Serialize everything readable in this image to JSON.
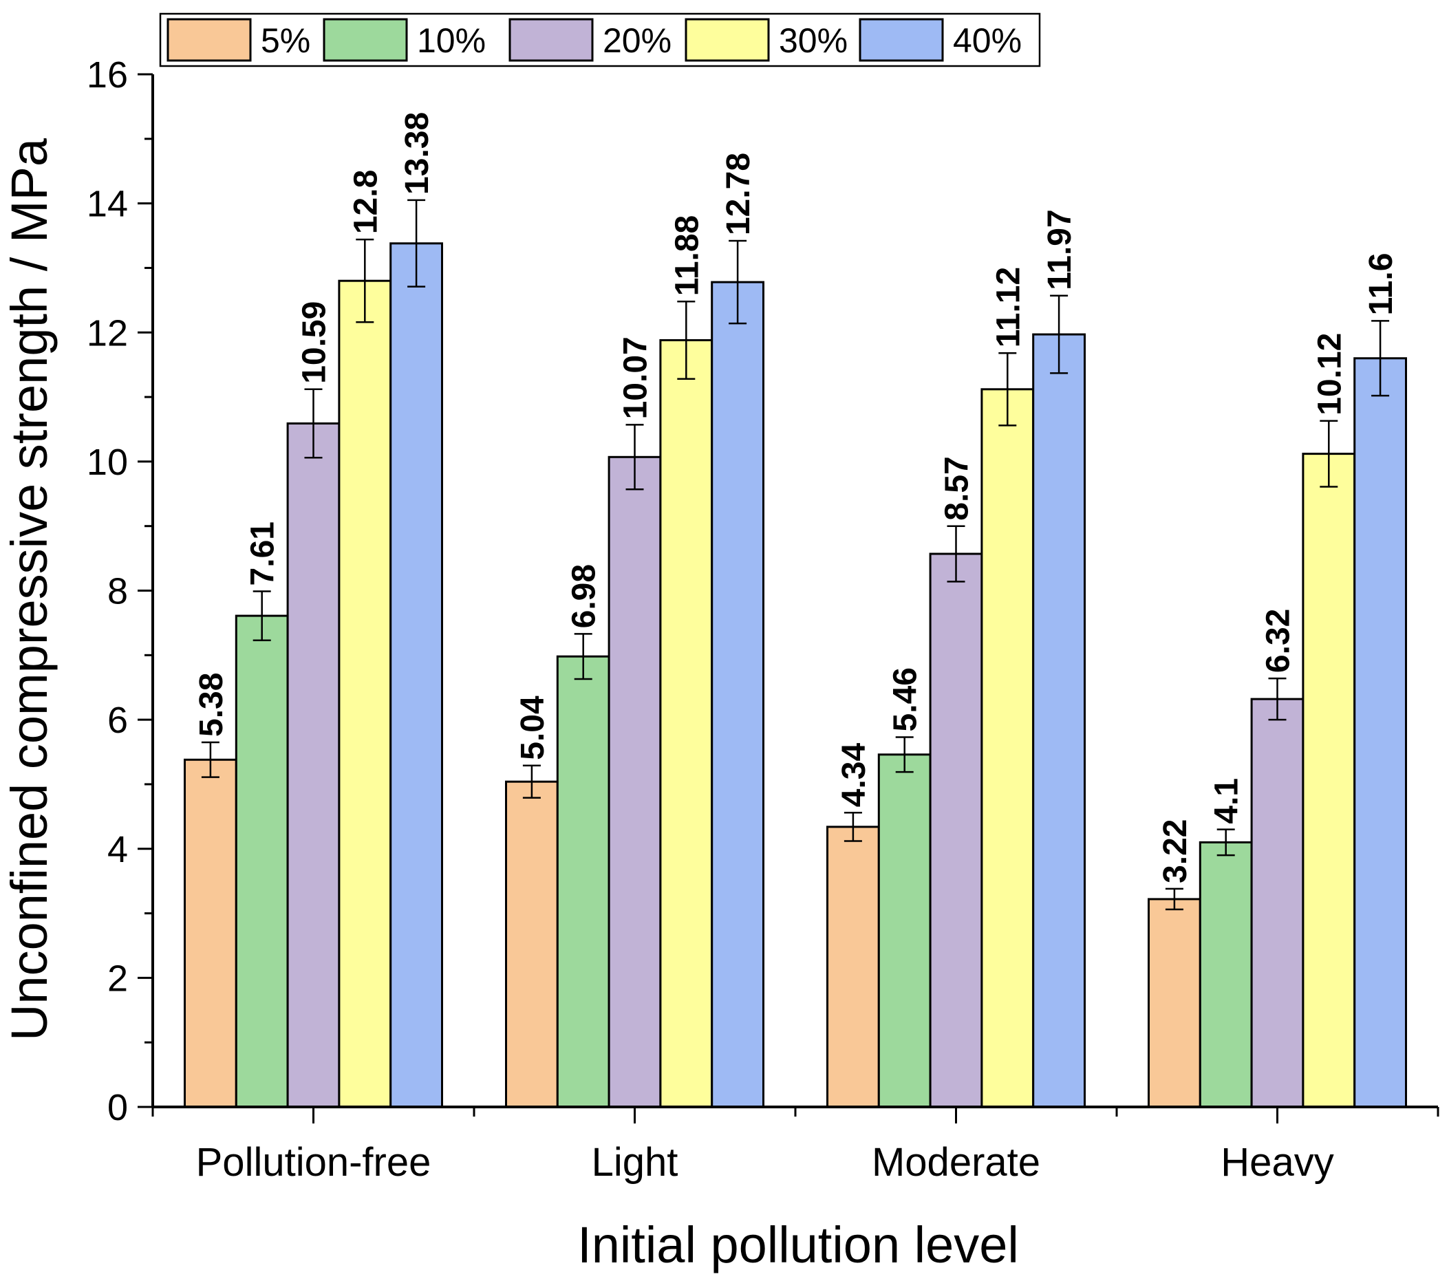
{
  "chart_data": {
    "type": "bar",
    "title": "",
    "xlabel": "Initial pollution level",
    "ylabel": "Unconfined compressive strength / MPa",
    "ylim": [
      0,
      16
    ],
    "yticks": [
      0,
      2,
      4,
      6,
      8,
      10,
      12,
      14,
      16
    ],
    "ytick_labels": [
      "0",
      "2",
      "4",
      "6",
      "8",
      "10",
      "12",
      "14",
      "16"
    ],
    "grid": false,
    "legend_position": "top",
    "categories": [
      "Pollution-free",
      "Light",
      "Moderate",
      "Heavy"
    ],
    "series": [
      {
        "name": "5%",
        "color": "#F9C897",
        "values": [
          5.38,
          5.04,
          4.34,
          3.22
        ],
        "errors": [
          0.27,
          0.25,
          0.22,
          0.16
        ],
        "labels": [
          "5.38",
          "5.04",
          "4.34",
          "3.22"
        ]
      },
      {
        "name": "10%",
        "color": "#9DD99C",
        "values": [
          7.61,
          6.98,
          5.46,
          4.1
        ],
        "errors": [
          0.38,
          0.35,
          0.27,
          0.2
        ],
        "labels": [
          "7.61",
          "6.98",
          "5.46",
          "4.1"
        ]
      },
      {
        "name": "20%",
        "color": "#C1B3D6",
        "values": [
          10.59,
          10.07,
          8.57,
          6.32
        ],
        "errors": [
          0.53,
          0.5,
          0.43,
          0.32
        ],
        "labels": [
          "10.59",
          "10.07",
          "8.57",
          "6.32"
        ]
      },
      {
        "name": "30%",
        "color": "#FEFE9C",
        "values": [
          12.8,
          11.88,
          11.12,
          10.12
        ],
        "errors": [
          0.64,
          0.6,
          0.56,
          0.51
        ],
        "labels": [
          "12.8",
          "11.88",
          "11.12",
          "10.12"
        ]
      },
      {
        "name": "40%",
        "color": "#9EBAF4",
        "values": [
          13.38,
          12.78,
          11.97,
          11.6
        ],
        "errors": [
          0.67,
          0.64,
          0.6,
          0.58
        ],
        "labels": [
          "13.38",
          "12.78",
          "11.97",
          "11.6"
        ]
      }
    ]
  }
}
